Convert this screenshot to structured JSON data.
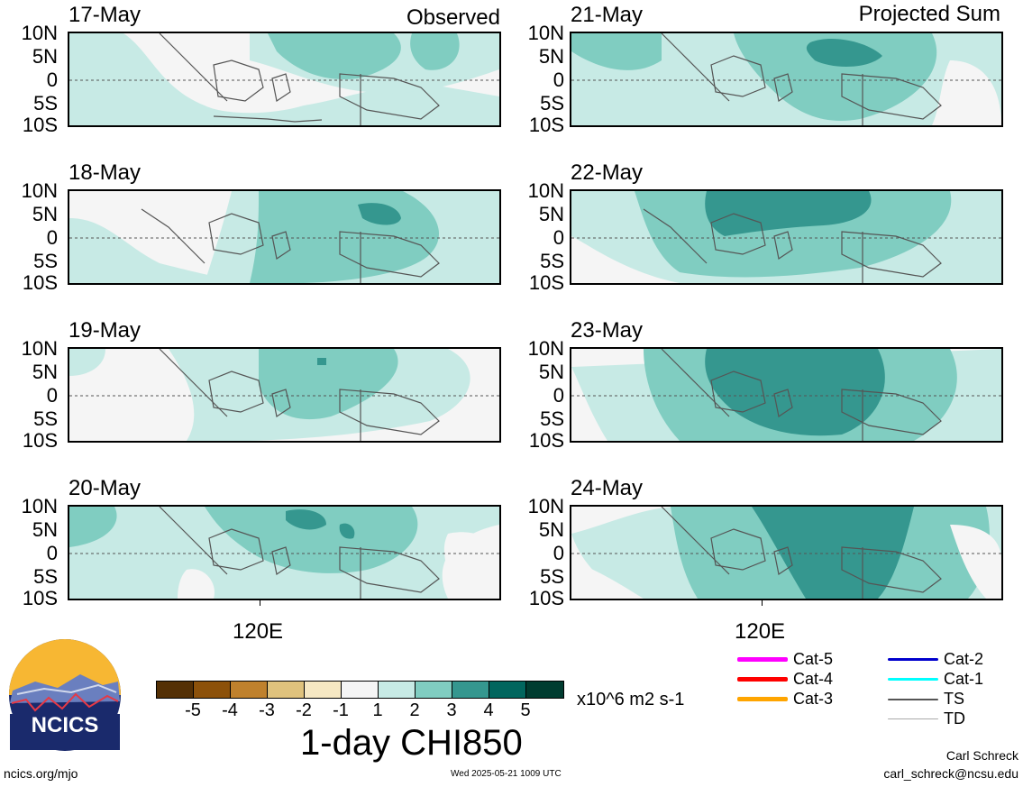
{
  "panels": {
    "left_header": "Observed",
    "right_header": "Projected Sum",
    "left_dates": [
      "17-May",
      "18-May",
      "19-May",
      "20-May"
    ],
    "right_dates": [
      "21-May",
      "22-May",
      "23-May",
      "24-May"
    ]
  },
  "lat_labels": [
    "10N",
    "5N",
    "0",
    "5S",
    "10S"
  ],
  "lon_label": "120E",
  "colorbar": {
    "ticks": [
      "-5",
      "-4",
      "-3",
      "-2",
      "-1",
      "1",
      "2",
      "3",
      "4",
      "5"
    ],
    "units": "x10^6 m2 s-1",
    "title": "1-day CHI850",
    "colors": [
      "#543005",
      "#8c510a",
      "#bf812d",
      "#dfc27d",
      "#f6e8c3",
      "#f5f5f5",
      "#c7eae5",
      "#80cdc1",
      "#35978f",
      "#01665e",
      "#003c30"
    ]
  },
  "legend": [
    {
      "label": "Cat-5",
      "color": "#ff00ff"
    },
    {
      "label": "Cat-4",
      "color": "#ff0000"
    },
    {
      "label": "Cat-3",
      "color": "#ffa500"
    },
    {
      "label": "Cat-2",
      "color": "#0000cd"
    },
    {
      "label": "Cat-1",
      "color": "#00ffff"
    },
    {
      "label": "TS",
      "color": "#555555"
    },
    {
      "label": "TD",
      "color": "#aaaaaa"
    }
  ],
  "logo": {
    "text": "NCICS"
  },
  "footer": {
    "url": "ncics.org/mjo",
    "timestamp": "Wed 2025-05-21 1009 UTC",
    "author": "Carl Schreck",
    "email": "carl_schreck@ncsu.edu"
  }
}
